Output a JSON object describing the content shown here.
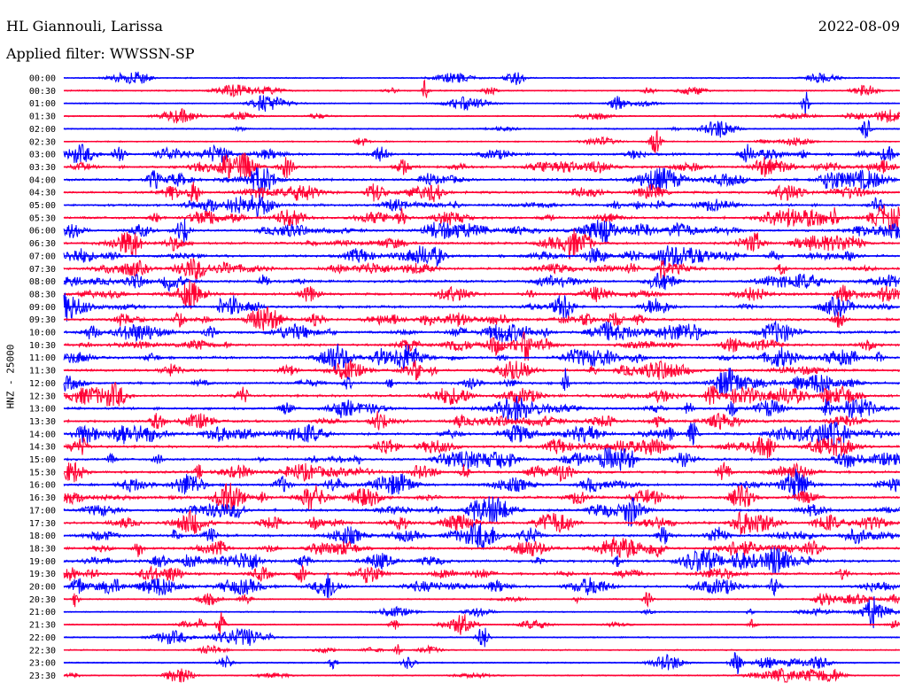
{
  "header": {
    "station": "HL Giannouli, Larissa",
    "date": "2022-08-09",
    "filter": "Applied filter: WWSSN-SP"
  },
  "chart_data": {
    "type": "line",
    "ylabel": "HNZ - 25000",
    "y_tick_labels": [
      "00:00",
      "00:30",
      "01:00",
      "01:30",
      "02:00",
      "02:30",
      "03:00",
      "03:30",
      "04:00",
      "04:30",
      "05:00",
      "05:30",
      "06:00",
      "06:30",
      "07:00",
      "07:30",
      "08:00",
      "08:30",
      "09:00",
      "09:30",
      "10:00",
      "10:30",
      "11:00",
      "11:30",
      "12:00",
      "12:30",
      "13:00",
      "13:30",
      "14:00",
      "14:30",
      "15:00",
      "15:30",
      "16:00",
      "16:30",
      "17:00",
      "17:30",
      "18:00",
      "18:30",
      "19:00",
      "19:30",
      "20:00",
      "20:30",
      "21:00",
      "21:30",
      "22:00",
      "22:30",
      "23:00",
      "23:30"
    ],
    "trace_colors": [
      "#0000ff",
      "#ff0033"
    ],
    "legend": "none",
    "grid": false
  }
}
